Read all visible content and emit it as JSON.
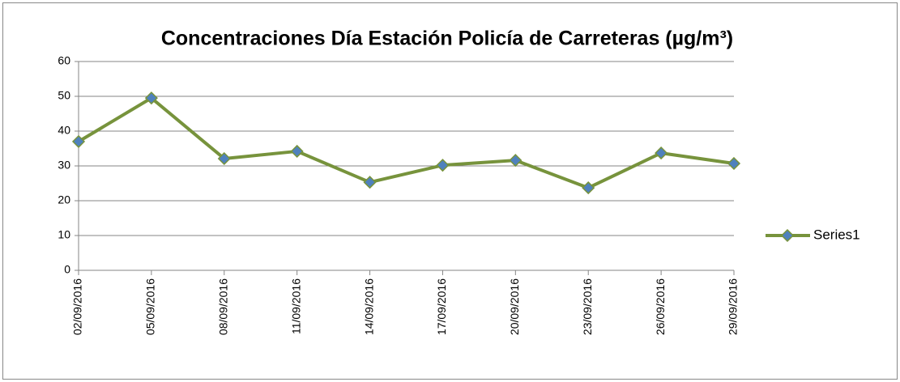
{
  "chart_data": {
    "type": "line",
    "title": "Concentraciones Día Estación Policía de Carreteras (µg/m³)",
    "categories": [
      "02/09/2016",
      "05/09/2016",
      "08/09/2016",
      "11/09/2016",
      "14/09/2016",
      "17/09/2016",
      "20/09/2016",
      "23/09/2016",
      "26/09/2016",
      "29/09/2016"
    ],
    "series": [
      {
        "name": "Series1",
        "color": "#77933c",
        "marker_color": "#4f81bd",
        "values": [
          37.0,
          49.5,
          32.1,
          34.2,
          25.3,
          30.2,
          31.6,
          23.7,
          33.7,
          30.7
        ]
      }
    ],
    "ylim": [
      0,
      60
    ],
    "yticks": [
      0,
      10,
      20,
      30,
      40,
      50,
      60
    ],
    "grid": true,
    "legend": "right"
  }
}
